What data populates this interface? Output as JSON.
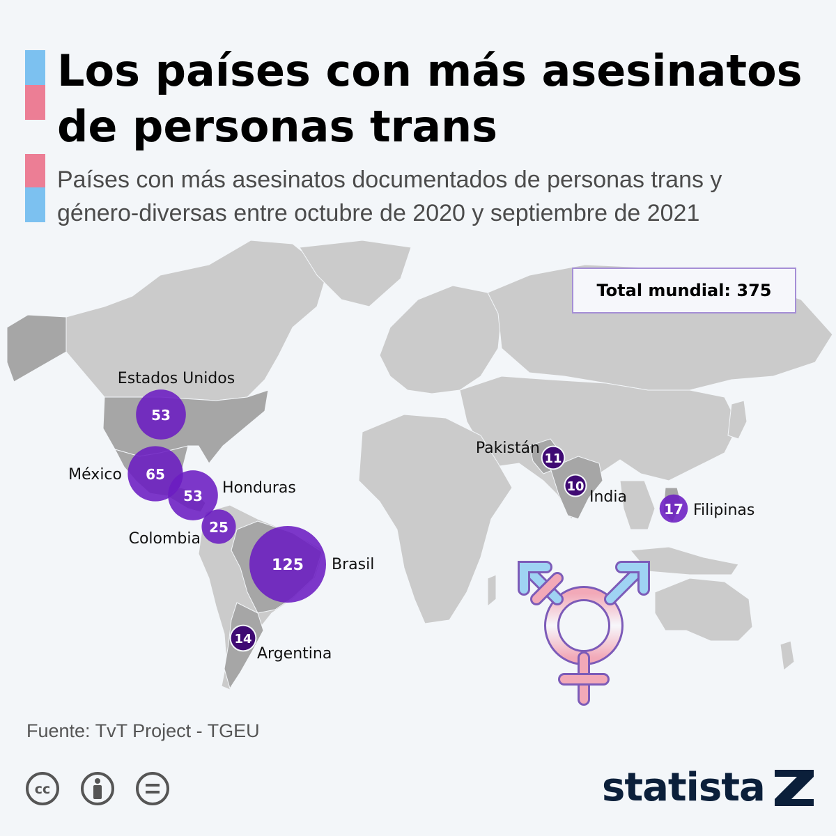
{
  "title": {
    "line1": "Los países con más asesinatos",
    "line2": "de personas trans"
  },
  "subtitle": {
    "line1": "Países con más asesinatos documentados de personas trans y",
    "line2": "género-diversas entre octubre de 2020 y septiembre de 2021"
  },
  "total_label": "Total mundial: 375",
  "source": "Fuente: TvT Project - TGEU",
  "brand": "statista",
  "colors": {
    "flag_blue": "#7cc1f0",
    "flag_pink": "#ec7e95",
    "bubble": "#6b1cc2",
    "bubble_dark": "#3f0a73",
    "land": "#cbcbcb",
    "land_highlight": "#9c9c9c",
    "brand_navy": "#0b1f3a"
  },
  "icons": [
    "transgender-symbol-icon",
    "creative-commons-icon",
    "attribution-icon",
    "no-derivatives-icon",
    "statista-logo-icon"
  ],
  "chart_data": {
    "type": "bubble-map",
    "title": "Los países con más asesinatos de personas trans",
    "subtitle": "Países con más asesinatos documentados de personas trans y género-diversas entre octubre de 2020 y septiembre de 2021",
    "total": 375,
    "series": [
      {
        "values": [
          {
            "country": "Brasil",
            "value": 125
          },
          {
            "country": "México",
            "value": 65
          },
          {
            "country": "Estados Unidos",
            "value": 53
          },
          {
            "country": "Honduras",
            "value": 53
          },
          {
            "country": "Colombia",
            "value": 25
          },
          {
            "country": "Filipinas",
            "value": 17
          },
          {
            "country": "Argentina",
            "value": 14
          },
          {
            "country": "Pakistán",
            "value": 11
          },
          {
            "country": "India",
            "value": 10
          }
        ]
      }
    ]
  }
}
